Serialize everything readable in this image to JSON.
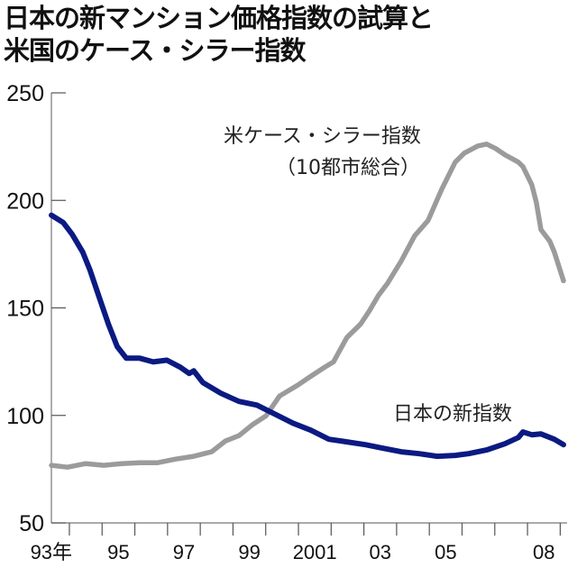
{
  "title_line1": "日本の新マンション価格指数の試算と",
  "title_line2": "米国のケース・シラー指数",
  "chart_data": {
    "type": "line",
    "title": "日本の新マンション価格指数の試算と米国のケース・シラー指数",
    "xlabel": "",
    "ylabel": "",
    "ylim": [
      50,
      250
    ],
    "xlim": [
      1993.45,
      2009.1
    ],
    "yticks": [
      50,
      100,
      150,
      200,
      250
    ],
    "ytick_labels": [
      "50",
      "100",
      "150",
      "200",
      "250"
    ],
    "xtick_labels": [
      {
        "label": "93年",
        "year": 1993.5
      },
      {
        "label": "95",
        "year": 1995.5
      },
      {
        "label": "97",
        "year": 1997.5
      },
      {
        "label": "99",
        "year": 1999.5
      },
      {
        "label": "2001",
        "year": 2001.5
      },
      {
        "label": "03",
        "year": 2003.5
      },
      {
        "label": "05",
        "year": 2005.5
      },
      {
        "label": "08",
        "year": 2008.5
      }
    ],
    "grid": false,
    "series": [
      {
        "name": "日本の新指数",
        "color": "#0b1a82",
        "x": [
          1993.45,
          1993.81,
          1994.08,
          1994.41,
          1994.63,
          1994.91,
          1995.19,
          1995.46,
          1995.74,
          1996.15,
          1996.56,
          1996.98,
          1997.39,
          1997.66,
          1997.8,
          1998.08,
          1998.63,
          1999.18,
          1999.73,
          2000.28,
          2000.83,
          2001.38,
          2001.93,
          2002.48,
          2003.04,
          2003.59,
          2004.14,
          2004.69,
          2005.24,
          2005.79,
          2006.2,
          2006.75,
          2007.31,
          2007.72,
          2007.86,
          2008.13,
          2008.41,
          2008.82,
          2009.1
        ],
        "y": [
          193.1,
          189.7,
          184.3,
          175.9,
          167.6,
          155.0,
          142.5,
          132.0,
          126.6,
          126.6,
          124.9,
          125.7,
          122.4,
          119.5,
          120.7,
          115.3,
          110.3,
          106.5,
          104.8,
          100.6,
          96.4,
          93.1,
          88.9,
          87.7,
          86.4,
          84.7,
          83.1,
          82.2,
          81.0,
          81.4,
          82.2,
          83.9,
          86.8,
          89.7,
          92.3,
          91.0,
          91.4,
          88.9,
          86.4
        ]
      },
      {
        "name": "米ケース・シラー指数（10都市総合）",
        "color": "#9b9b9b",
        "x": [
          1993.45,
          1993.94,
          1994.5,
          1995.05,
          1995.6,
          1996.15,
          1996.7,
          1997.25,
          1997.8,
          1998.35,
          1998.77,
          1999.18,
          1999.59,
          2000.01,
          2000.42,
          2000.97,
          2001.38,
          2001.8,
          2002.07,
          2002.48,
          2002.9,
          2003.17,
          2003.45,
          2003.72,
          2004.14,
          2004.55,
          2004.96,
          2005.38,
          2005.79,
          2006.07,
          2006.48,
          2006.75,
          2007.03,
          2007.31,
          2007.72,
          2007.86,
          2008.13,
          2008.27,
          2008.41,
          2008.68,
          2008.82,
          2009.1
        ],
        "y": [
          76.8,
          75.9,
          77.6,
          76.8,
          77.6,
          78.0,
          78.0,
          79.7,
          81.0,
          83.1,
          88.1,
          90.6,
          95.6,
          99.8,
          109.0,
          114.0,
          118.2,
          122.4,
          124.9,
          136.2,
          142.5,
          148.7,
          155.9,
          161.3,
          171.8,
          183.5,
          190.6,
          205.2,
          217.8,
          222.0,
          225.3,
          226.2,
          224.1,
          221.2,
          217.8,
          215.7,
          207.3,
          199.0,
          186.4,
          181.0,
          176.0,
          162.6
        ]
      }
    ],
    "annotations": {
      "us_label": "米ケース・シラー指数",
      "us_sublabel": "（10都市総合）",
      "jp_label": "日本の新指数"
    }
  }
}
